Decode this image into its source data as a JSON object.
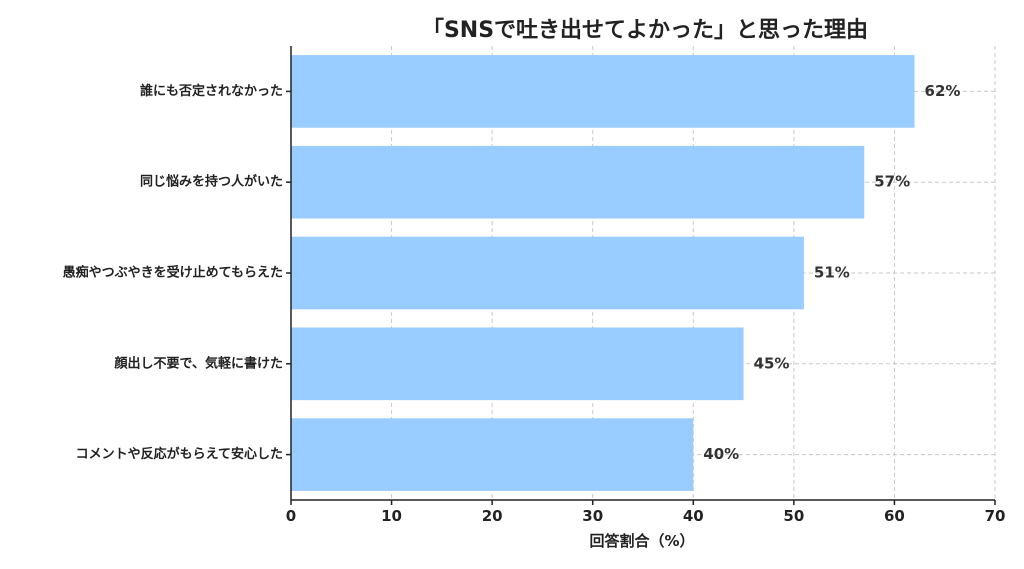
{
  "chart_data": {
    "type": "bar",
    "orientation": "horizontal",
    "title": "「SNSで吐き出せてよかった」と思った理由",
    "xlabel": "回答割合（%）",
    "ylabel": "",
    "xlim": [
      0,
      70
    ],
    "x_ticks": [
      0,
      10,
      20,
      30,
      40,
      50,
      60,
      70
    ],
    "grid": true,
    "bar_color": "#99ccff",
    "categories": [
      "誰にも否定されなかった",
      "同じ悩みを持つ人がいた",
      "愚痴やつぶやきを受け止めてもらえた",
      "顔出し不要で、気軽に書けた",
      "コメントや反応がもらえて安心した"
    ],
    "values": [
      62,
      57,
      51,
      45,
      40
    ],
    "value_labels": [
      "62%",
      "57%",
      "51%",
      "45%",
      "40%"
    ]
  }
}
